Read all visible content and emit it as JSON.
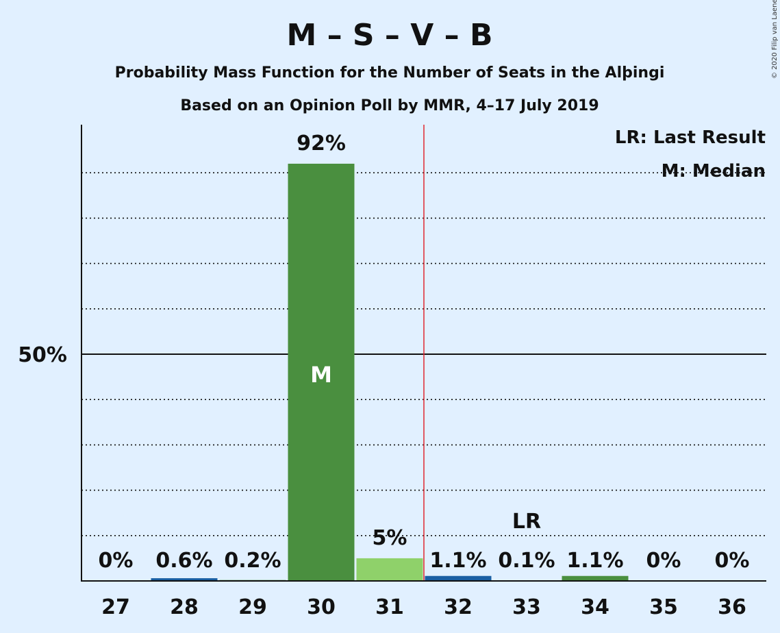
{
  "title": "M – S – V – B",
  "subtitle1": "Probability Mass Function for the Number of Seats in the Alþingi",
  "subtitle2": "Based on an Opinion Poll by MMR, 4–17 July 2019",
  "copyright": "© 2020 Filip van Laenen",
  "legend": {
    "lr": "LR: Last Result",
    "m": "M: Median"
  },
  "colors": {
    "background": "#e1f0ff",
    "dark_green": "#4a8f3f",
    "light_green": "#8fd16a",
    "blue": "#1a5fa3",
    "last_result_line": "#e0262f"
  },
  "chart_data": {
    "type": "bar",
    "categories": [
      "27",
      "28",
      "29",
      "30",
      "31",
      "32",
      "33",
      "34",
      "35",
      "36"
    ],
    "values": [
      0,
      0.6,
      0.2,
      92,
      5,
      1.1,
      0.1,
      1.1,
      0,
      0
    ],
    "labels": [
      "0%",
      "0.6%",
      "0.2%",
      "92%",
      "5%",
      "1.1%",
      "0.1%",
      "1.1%",
      "0%",
      "0%"
    ],
    "bar_colors": [
      "dark_green",
      "blue",
      "dark_green",
      "dark_green",
      "light_green",
      "blue",
      "dark_green",
      "dark_green",
      "dark_green",
      "dark_green"
    ],
    "ylim": [
      0,
      100
    ],
    "y_tick_label": "50%",
    "y_tick_value": 50,
    "gridlines": [
      10,
      20,
      30,
      40,
      60,
      70,
      80,
      90
    ],
    "median": {
      "category": "30",
      "label": "M"
    },
    "last_result": {
      "category": "33",
      "label": "LR"
    },
    "majority_line_after": "31"
  }
}
